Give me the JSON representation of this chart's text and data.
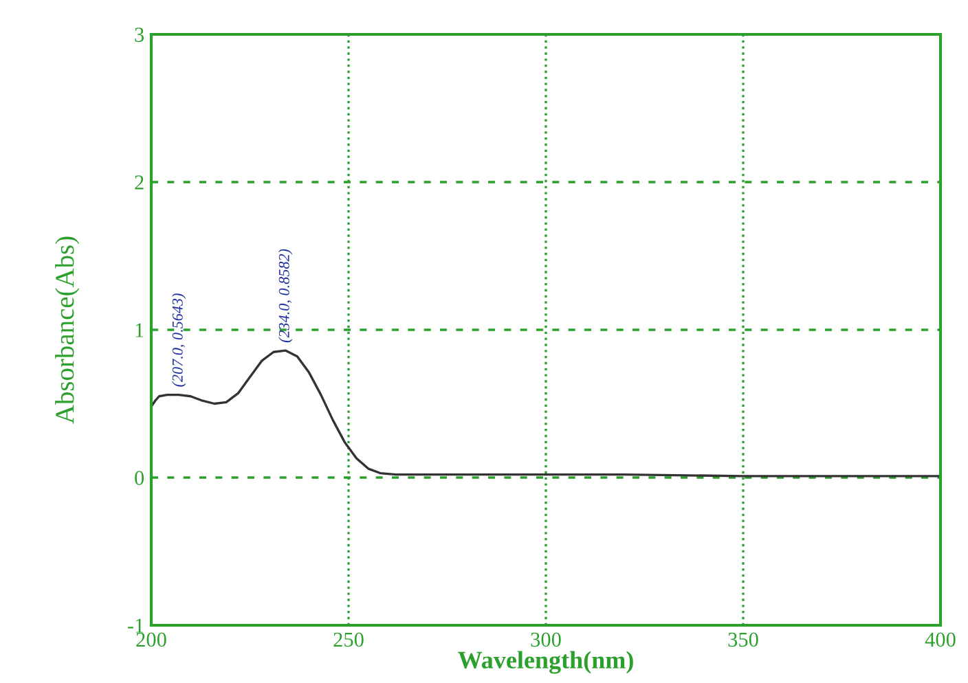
{
  "chart_data": {
    "type": "line",
    "xlabel": "Wavelength(nm)",
    "ylabel": "Absorbance(Abs)",
    "x": [
      200,
      201,
      202,
      204,
      207,
      210,
      213,
      216,
      219,
      222,
      225,
      228,
      231,
      234,
      237,
      240,
      243,
      246,
      249,
      252,
      255,
      258,
      262,
      270,
      290,
      320,
      350,
      380,
      400
    ],
    "series": [
      {
        "color": "#333333",
        "values": [
          0.48,
          0.52,
          0.55,
          0.56,
          0.56,
          0.55,
          0.52,
          0.5,
          0.51,
          0.57,
          0.68,
          0.79,
          0.85,
          0.86,
          0.82,
          0.71,
          0.56,
          0.39,
          0.24,
          0.13,
          0.06,
          0.03,
          0.02,
          0.02,
          0.02,
          0.02,
          0.01,
          0.01,
          0.01
        ]
      }
    ],
    "xlim": [
      200,
      400
    ],
    "ylim": [
      -1,
      3
    ],
    "xticks": [
      200,
      250,
      300,
      350,
      400
    ],
    "yticks": [
      -1,
      0,
      1,
      2,
      3
    ],
    "grid": true,
    "marker": "none",
    "line_style": "solid",
    "annotations": [
      {
        "text": "(207.0, 0.5643)",
        "x": 207,
        "y": 0.56
      },
      {
        "text": "(234.0, 0.8582)",
        "x": 234,
        "y": 0.86
      }
    ]
  }
}
